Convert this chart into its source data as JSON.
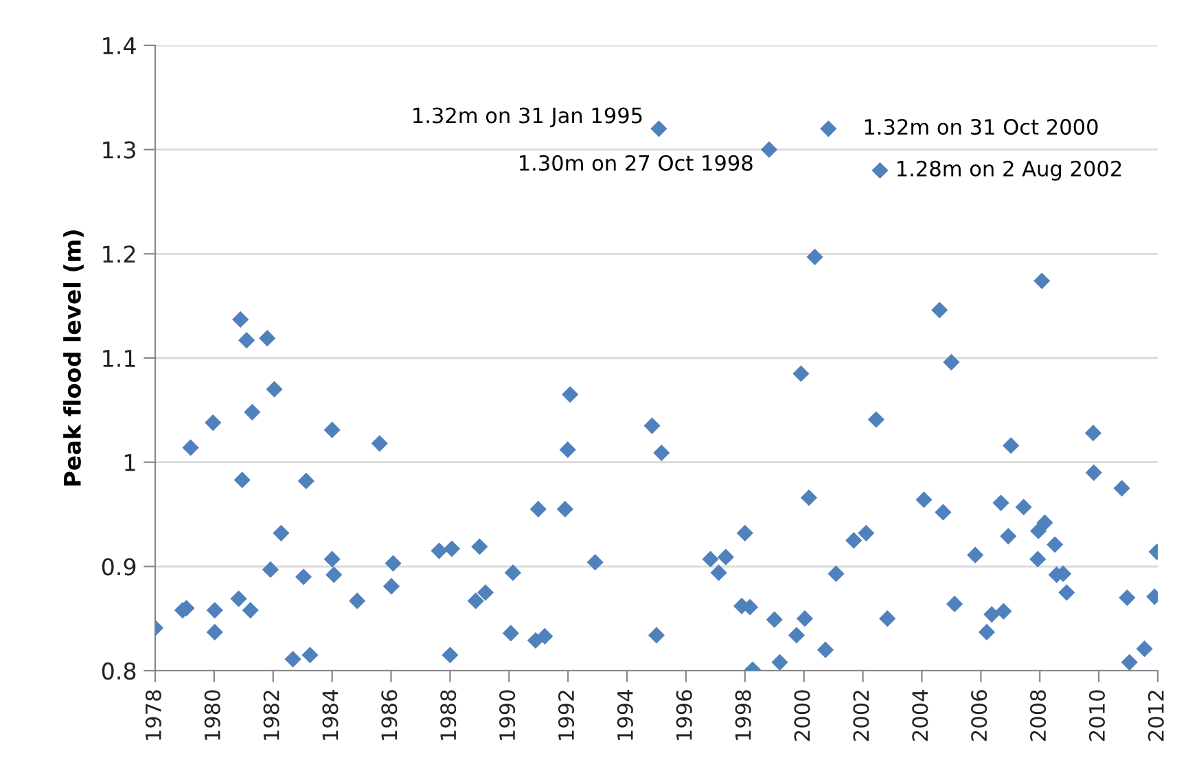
{
  "chart_data": {
    "type": "scatter",
    "ylabel": "Peak flood level (m)",
    "x": [
      1978.0,
      1978.93,
      1979.06,
      1979.2,
      1979.96,
      1980.02,
      1980.02,
      1980.83,
      1980.89,
      1980.95,
      1981.1,
      1981.23,
      1981.29,
      1981.8,
      1981.91,
      1982.04,
      1982.27,
      1982.67,
      1983.03,
      1983.12,
      1983.25,
      1984.0,
      1984.0,
      1984.06,
      1984.85,
      1985.61,
      1986.01,
      1986.07,
      1987.63,
      1988.06,
      1988.0,
      1988.87,
      1989.0,
      1989.2,
      1990.13,
      1990.06,
      1990.9,
      1991.21,
      1990.99,
      1991.9,
      1991.99,
      1992.07,
      1992.92,
      1994.85,
      1995.17,
      1995.0,
      1996.83,
      1997.11,
      1997.35,
      1997.89,
      1998.17,
      1998.0,
      1998.26,
      1999.0,
      1999.18,
      1999.75,
      2000.37,
      1999.9,
      2000.03,
      2000.17,
      2000.73,
      2001.09,
      2001.69,
      2002.11,
      2002.45,
      2002.83,
      2004.07,
      2004.6,
      2004.72,
      2005.0,
      2005.11,
      2005.81,
      2006.2,
      2006.37,
      2006.77,
      2006.68,
      2006.93,
      2007.02,
      2007.45,
      2007.95,
      2007.93,
      2008.07,
      2008.17,
      2008.51,
      2008.57,
      2008.79,
      2008.91,
      2009.81,
      2009.83,
      2010.78,
      2010.96,
      2011.04,
      2011.55,
      2011.89,
      2011.97,
      1995.08,
      1998.82,
      2000.83,
      2002.58
    ],
    "series": [
      {
        "color": "#4f81bd",
        "values": [
          0.841,
          0.858,
          0.86,
          1.014,
          1.038,
          0.858,
          0.837,
          0.869,
          1.137,
          0.983,
          1.117,
          0.858,
          1.048,
          1.119,
          0.897,
          1.07,
          0.932,
          0.811,
          0.89,
          0.982,
          0.815,
          1.031,
          0.907,
          0.892,
          0.867,
          1.018,
          0.881,
          0.903,
          0.915,
          0.917,
          0.815,
          0.867,
          0.919,
          0.875,
          0.894,
          0.836,
          0.829,
          0.833,
          0.955,
          0.955,
          1.012,
          1.065,
          0.904,
          1.035,
          1.009,
          0.834,
          0.907,
          0.894,
          0.909,
          0.862,
          0.861,
          0.932,
          0.801,
          0.849,
          0.808,
          0.834,
          1.197,
          1.085,
          0.85,
          0.966,
          0.82,
          0.893,
          0.925,
          0.932,
          1.041,
          0.85,
          0.964,
          1.146,
          0.952,
          1.096,
          0.864,
          0.911,
          0.837,
          0.854,
          0.857,
          0.961,
          0.929,
          1.016,
          0.957,
          0.934,
          0.907,
          1.174,
          0.942,
          0.921,
          0.892,
          0.893,
          0.875,
          1.028,
          0.99,
          0.975,
          0.87,
          0.808,
          0.821,
          0.871,
          0.914,
          1.32,
          1.3,
          1.32,
          1.28
        ]
      }
    ],
    "xlim": [
      1978,
      2012
    ],
    "xticks": [
      1978,
      1980,
      1982,
      1984,
      1986,
      1988,
      1990,
      1992,
      1994,
      1996,
      1998,
      2000,
      2002,
      2004,
      2006,
      2008,
      2010,
      2012
    ],
    "ylim": [
      0.8,
      1.4
    ],
    "yticks": [
      0.8,
      0.9,
      1,
      1.1,
      1.2,
      1.3,
      1.4
    ],
    "grid": "y",
    "marker": "diamond",
    "annotations": [
      {
        "text": "1.32m on 31 Jan 1995",
        "x": 1995.08,
        "y": 1.32
      },
      {
        "text": "1.30m on 27 Oct 1998",
        "x": 1998.82,
        "y": 1.3
      },
      {
        "text": "1.32m on 31 Oct 2000",
        "x": 2000.83,
        "y": 1.32
      },
      {
        "text": "1.28m on 2 Aug 2002",
        "x": 2002.58,
        "y": 1.28
      }
    ]
  }
}
